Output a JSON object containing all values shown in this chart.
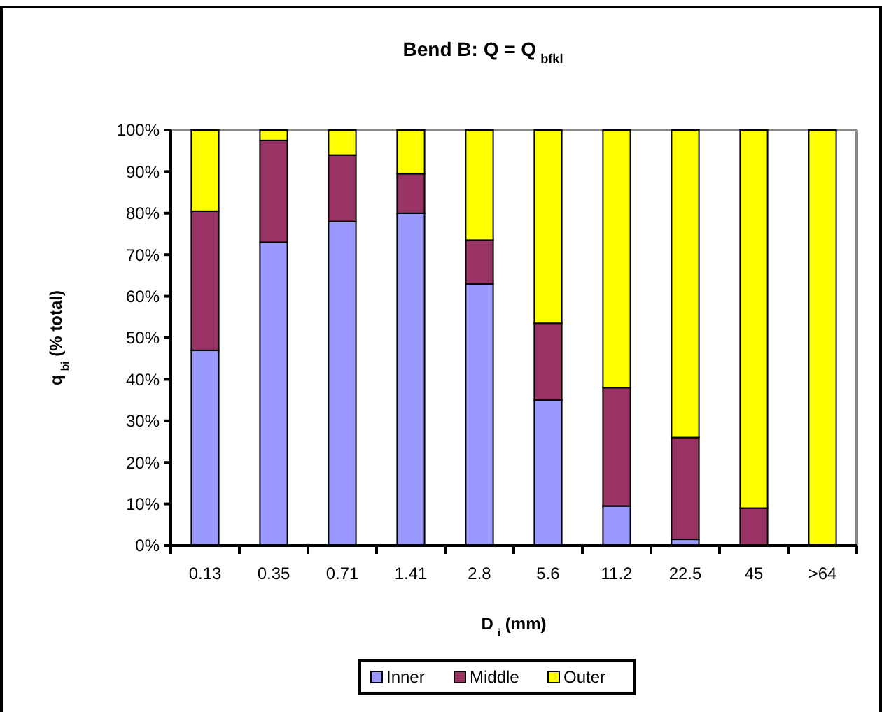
{
  "chart_data": {
    "type": "bar",
    "stacked": true,
    "title": "Bend B: Q = Q$_{bfkl}$",
    "xlabel": "D$_{i}$ (mm)",
    "ylabel": "q$_{bi}$ (% total)",
    "categories": [
      "0.13",
      "0.35",
      "0.71",
      "1.41",
      "2.8",
      "5.6",
      "11.2",
      "22.5",
      "45",
      ">64"
    ],
    "series": [
      {
        "name": "Inner",
        "color": "#9999ff",
        "values": [
          47,
          73,
          78,
          80,
          63,
          35,
          9.5,
          1.5,
          0,
          0
        ]
      },
      {
        "name": "Middle",
        "color": "#993366",
        "values": [
          33.5,
          24.5,
          16,
          9.5,
          10.5,
          18.5,
          28.5,
          24.5,
          9,
          0
        ]
      },
      {
        "name": "Outer",
        "color": "#ffff00",
        "values": [
          19.5,
          2.5,
          6,
          10.5,
          26.5,
          46.5,
          62,
          74,
          91,
          100
        ]
      }
    ],
    "ylim": [
      0,
      100
    ],
    "yticks": [
      {
        "value": 0,
        "label": "0%"
      },
      {
        "value": 10,
        "label": "10%"
      },
      {
        "value": 20,
        "label": "20%"
      },
      {
        "value": 30,
        "label": "30%"
      },
      {
        "value": 40,
        "label": "40%"
      },
      {
        "value": 50,
        "label": "50%"
      },
      {
        "value": 60,
        "label": "60%"
      },
      {
        "value": 70,
        "label": "70%"
      },
      {
        "value": 80,
        "label": "80%"
      },
      {
        "value": 90,
        "label": "90%"
      },
      {
        "value": 100,
        "label": "100%"
      }
    ],
    "grid": false,
    "legend": "bottom"
  }
}
